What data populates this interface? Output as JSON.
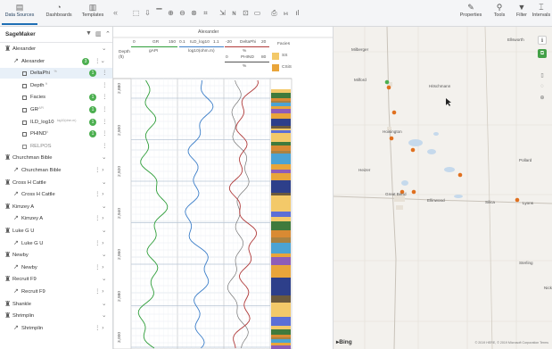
{
  "nav": {
    "tabs": [
      {
        "label": "Data Sources",
        "glyph": "▤"
      },
      {
        "label": "Dashboards",
        "glyph": "◔"
      },
      {
        "label": "Templates",
        "glyph": "▥"
      }
    ],
    "collapse_glyph": "«",
    "tools": [
      {
        "name": "pointer-icon",
        "glyph": "⬚"
      },
      {
        "name": "import-icon",
        "glyph": "⇩"
      },
      {
        "name": "track-icon",
        "glyph": "▔"
      },
      {
        "name": "zoom-in-icon",
        "glyph": "⊕"
      },
      {
        "name": "zoom-out-icon",
        "glyph": "⊖"
      },
      {
        "name": "zoom-fit-icon",
        "glyph": "⊗"
      },
      {
        "name": "crop-icon",
        "glyph": "⌗"
      },
      {
        "name": "depth-icon",
        "glyph": "⇲"
      },
      {
        "name": "curve-icon",
        "glyph": "ɴ"
      },
      {
        "name": "panel-icon",
        "glyph": "⊡"
      },
      {
        "name": "rectangle-icon",
        "glyph": "▭"
      },
      {
        "name": "print-icon",
        "glyph": "⎙"
      },
      {
        "name": "multi-well-icon",
        "glyph": "ⲙ"
      },
      {
        "name": "bar-chart-icon",
        "glyph": "ıl"
      }
    ],
    "right_tools": [
      {
        "label": "Properties",
        "glyph": "✎"
      },
      {
        "label": "Tools",
        "glyph": "⚲"
      },
      {
        "label": "Filter",
        "glyph": "▼"
      },
      {
        "label": "Intervals",
        "glyph": "⌶"
      }
    ]
  },
  "sidebar": {
    "title": "SageMaker",
    "items": [
      {
        "label": "Alexander",
        "kind": "well",
        "indent": 0
      },
      {
        "label": "Alexander",
        "kind": "wellbore",
        "indent": 1,
        "badge": "3"
      },
      {
        "label": "DeltaPhi",
        "kind": "curve",
        "indent": 2,
        "badge": "1",
        "sup": "%",
        "selected": true
      },
      {
        "label": "Depth",
        "kind": "curve",
        "indent": 2,
        "sup": "ft"
      },
      {
        "label": "Facies",
        "kind": "curve",
        "indent": 2,
        "badge": "1"
      },
      {
        "label": "GR",
        "kind": "curve",
        "indent": 2,
        "badge": "1",
        "sup": "gAPI"
      },
      {
        "label": "ILD_log10",
        "kind": "curve",
        "indent": 2,
        "badge": "1",
        "sup": "log10(ohm.m)"
      },
      {
        "label": "PHIND",
        "kind": "curve",
        "indent": 2,
        "badge": "1",
        "sup": "%"
      },
      {
        "label": "RELPOS",
        "kind": "curve-dim",
        "indent": 2
      },
      {
        "label": "Churchman Bible",
        "kind": "well",
        "indent": 0
      },
      {
        "label": "Churchman Bible",
        "kind": "wellbore",
        "indent": 1
      },
      {
        "label": "Cross H Cattle",
        "kind": "well",
        "indent": 0
      },
      {
        "label": "Cross H Cattle",
        "kind": "wellbore",
        "indent": 1
      },
      {
        "label": "Kimzey A",
        "kind": "well",
        "indent": 0
      },
      {
        "label": "Kimzey A",
        "kind": "wellbore",
        "indent": 1
      },
      {
        "label": "Luke G U",
        "kind": "well",
        "indent": 0
      },
      {
        "label": "Luke G U",
        "kind": "wellbore",
        "indent": 1
      },
      {
        "label": "Newby",
        "kind": "well",
        "indent": 0
      },
      {
        "label": "Newby",
        "kind": "wellbore",
        "indent": 1
      },
      {
        "label": "Recruit F9",
        "kind": "well",
        "indent": 0
      },
      {
        "label": "Recruit F9",
        "kind": "wellbore",
        "indent": 1
      },
      {
        "label": "Shankle",
        "kind": "well",
        "indent": 0
      },
      {
        "label": "Shrimplin",
        "kind": "well",
        "indent": 0
      },
      {
        "label": "Shrimplin",
        "kind": "wellbore",
        "indent": 1
      }
    ]
  },
  "log": {
    "well_title": "Alexander",
    "depth_track": {
      "label": "Depth",
      "unit": "(ft)",
      "ticks": [
        "2,880",
        "2,900",
        "2,920",
        "2,940",
        "2,960",
        "2,980",
        "3,000"
      ]
    },
    "gr_track": {
      "name": "GR",
      "min": "0",
      "max": "150",
      "unit": "gAPI",
      "color": "#2f9e3a"
    },
    "ild_track": {
      "name": "ILD_log10",
      "min": "0.1",
      "max": "1.1",
      "unit": "log10(ohm.m)",
      "color": "#3d7fc9"
    },
    "phi_track": {
      "delta": {
        "name": "DeltaPhi",
        "min": "-20",
        "max": "20",
        "unit": "%",
        "color": "#b03a3a"
      },
      "phind": {
        "name": "PHIND",
        "min": "0",
        "max": "80",
        "unit": "%",
        "color": "#555555"
      }
    },
    "facies_track": {
      "name": "Facies",
      "legend": [
        {
          "label": "SS",
          "color": "#f3c969"
        },
        {
          "label": "CSiS",
          "color": "#e9a53a"
        }
      ]
    }
  },
  "map": {
    "towns": [
      {
        "name": "Milberger"
      },
      {
        "name": "Milford"
      },
      {
        "name": "Hitschmann"
      },
      {
        "name": "Hoisington"
      },
      {
        "name": "Ellsworth"
      },
      {
        "name": "Heizer"
      },
      {
        "name": "Great Bend"
      },
      {
        "name": "Ellinwood"
      },
      {
        "name": "Silica"
      },
      {
        "name": "Lyons"
      },
      {
        "name": "Pollard"
      },
      {
        "name": "Sterling"
      },
      {
        "name": "Nick"
      }
    ],
    "bing_label": "Bing",
    "copyright": "© 2019 HERE, © 2019 Microsoft Corporation Terms",
    "well_color": "#e0701f",
    "selected_well_color": "#4caf50"
  }
}
